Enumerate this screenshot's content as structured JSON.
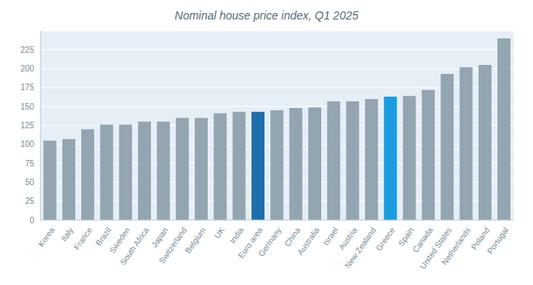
{
  "chart_data": {
    "type": "bar",
    "title": "Nominal house price index, Q1 2025",
    "categories": [
      "Korea",
      "Italy",
      "France",
      "Brazil",
      "Sweden",
      "South Africa",
      "Japan",
      "Switzerland",
      "Belgium",
      "UK",
      "India",
      "Euro area",
      "Germany",
      "China",
      "Australia",
      "Israel",
      "Austria",
      "New Zealand",
      "Greece",
      "Spain",
      "Canada",
      "United States",
      "Netherlands",
      "Poland",
      "Portugal"
    ],
    "values": [
      105,
      107,
      120,
      126,
      126,
      130,
      130,
      135,
      135,
      141,
      143,
      143,
      145,
      148,
      149,
      157,
      157,
      160,
      163,
      164,
      172,
      193,
      202,
      205,
      240
    ],
    "colors": [
      "#93a5b1",
      "#93a5b1",
      "#93a5b1",
      "#93a5b1",
      "#93a5b1",
      "#93a5b1",
      "#93a5b1",
      "#93a5b1",
      "#93a5b1",
      "#93a5b1",
      "#93a5b1",
      "#1f6fae",
      "#93a5b1",
      "#93a5b1",
      "#93a5b1",
      "#93a5b1",
      "#93a5b1",
      "#93a5b1",
      "#1a9ce0",
      "#93a5b1",
      "#93a5b1",
      "#93a5b1",
      "#93a5b1",
      "#93a5b1",
      "#93a5b1"
    ],
    "ylim": [
      0,
      250
    ],
    "yticks": [
      0,
      25,
      50,
      75,
      100,
      125,
      150,
      175,
      200,
      225
    ],
    "grid": true
  }
}
